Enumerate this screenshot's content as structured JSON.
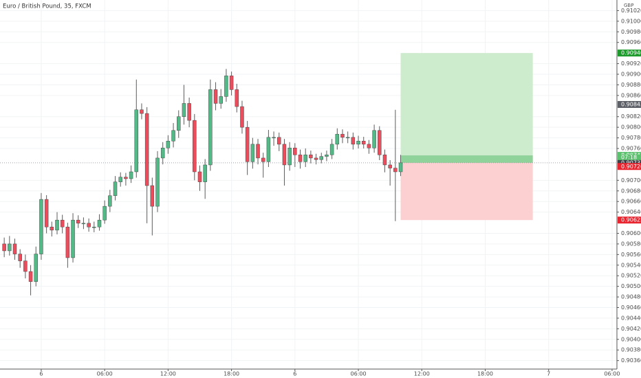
{
  "chart_data": {
    "type": "candlestick",
    "title": "Euro / British Pound, 35, FXCM",
    "currency": "GBP",
    "xlim": [
      -3.9,
      54.46
    ],
    "ylim": [
      0.90344,
      0.9104
    ],
    "xticks": [
      {
        "value": 0,
        "label": "6"
      },
      {
        "value": 6,
        "label": "06:00"
      },
      {
        "value": 12,
        "label": "12:00"
      },
      {
        "value": 18,
        "label": "18:00"
      },
      {
        "value": 24,
        "label": "6"
      },
      {
        "value": 30,
        "label": "06:00"
      },
      {
        "value": 36,
        "label": "12:00"
      },
      {
        "value": 42,
        "label": "18:00"
      },
      {
        "value": 48,
        "label": "7"
      },
      {
        "value": 54,
        "label": "06:00"
      }
    ],
    "yticks": [
      {
        "value": 0.9036,
        "label": "0.90360"
      },
      {
        "value": 0.9038,
        "label": "0.90380"
      },
      {
        "value": 0.904,
        "label": "0.90400"
      },
      {
        "value": 0.9042,
        "label": "0.90420"
      },
      {
        "value": 0.9044,
        "label": "0.90440"
      },
      {
        "value": 0.9046,
        "label": "0.90460"
      },
      {
        "value": 0.9048,
        "label": "0.90480"
      },
      {
        "value": 0.905,
        "label": "0.90500"
      },
      {
        "value": 0.9052,
        "label": "0.90520"
      },
      {
        "value": 0.9054,
        "label": "0.90540"
      },
      {
        "value": 0.9056,
        "label": "0.90560"
      },
      {
        "value": 0.9058,
        "label": "0.90580"
      },
      {
        "value": 0.906,
        "label": "0.90600"
      },
      {
        "value": 0.9064,
        "label": "0.90640"
      },
      {
        "value": 0.9066,
        "label": "0.90660"
      },
      {
        "value": 0.9068,
        "label": "0.90680"
      },
      {
        "value": 0.907,
        "label": "0.90700"
      },
      {
        "value": 0.9076,
        "label": "0.90760"
      },
      {
        "value": 0.9078,
        "label": "0.90780"
      },
      {
        "value": 0.908,
        "label": "0.90800"
      },
      {
        "value": 0.9082,
        "label": "0.90820"
      },
      {
        "value": 0.9086,
        "label": "0.90860"
      },
      {
        "value": 0.9088,
        "label": "0.90880"
      },
      {
        "value": 0.909,
        "label": "0.90900"
      },
      {
        "value": 0.9092,
        "label": "0.90920"
      },
      {
        "value": 0.9096,
        "label": "0.90960"
      },
      {
        "value": 0.9098,
        "label": "0.90980"
      },
      {
        "value": 0.91,
        "label": "0.91000"
      },
      {
        "value": 0.9102,
        "label": "0.91020"
      }
    ],
    "grid": true,
    "up_color": "#53b987",
    "down_color": "#eb4d5c",
    "x": [
      -3.5,
      -3,
      -2.5,
      -2,
      -1.5,
      -1,
      -0.5,
      0,
      0.5,
      1,
      1.5,
      2,
      2.5,
      3,
      3.5,
      4,
      4.5,
      5,
      5.5,
      6,
      6.5,
      7,
      7.5,
      8,
      8.5,
      9,
      9.5,
      10,
      10.5,
      11,
      11.5,
      12,
      12.5,
      13,
      13.5,
      14,
      14.5,
      15,
      15.5,
      16,
      16.5,
      17,
      17.5,
      18,
      18.5,
      19,
      19.5,
      20,
      20.5,
      21,
      21.5,
      22,
      22.5,
      23,
      23.5,
      24,
      24.5,
      25,
      25.5,
      26,
      26.5,
      27,
      27.5,
      28,
      28.5,
      29,
      29.5,
      30,
      30.5,
      31,
      31.5,
      32,
      32.5,
      33,
      33.5,
      34
    ],
    "open": [
      0.9058,
      0.90567,
      0.9058,
      0.90561,
      0.90548,
      0.90528,
      0.90509,
      0.90561,
      0.90664,
      0.90612,
      0.90606,
      0.90625,
      0.90612,
      0.90554,
      0.90625,
      0.90619,
      0.90619,
      0.90612,
      0.90612,
      0.90625,
      0.90651,
      0.90671,
      0.90697,
      0.90706,
      0.90703,
      0.90716,
      0.90833,
      0.90826,
      0.9069,
      0.90651,
      0.90742,
      0.90761,
      0.90774,
      0.90794,
      0.9082,
      0.90845,
      0.90813,
      0.90716,
      0.90697,
      0.90729,
      0.90871,
      0.90845,
      0.90858,
      0.90897,
      0.90871,
      0.90839,
      0.908,
      0.90735,
      0.90768,
      0.90742,
      0.90735,
      0.90781,
      0.90781,
      0.90768,
      0.90729,
      0.90761,
      0.90748,
      0.90735,
      0.90748,
      0.90742,
      0.90739,
      0.90745,
      0.90748,
      0.90768,
      0.90787,
      0.90781,
      0.90781,
      0.90768,
      0.90774,
      0.90768,
      0.90761,
      0.90794,
      0.90748,
      0.90729,
      0.90723,
      0.90716
    ],
    "high": [
      0.90592,
      0.90595,
      0.9059,
      0.9057,
      0.9056,
      0.9054,
      0.90575,
      0.90676,
      0.90672,
      0.90622,
      0.9064,
      0.90635,
      0.9062,
      0.90638,
      0.90634,
      0.9063,
      0.90628,
      0.90622,
      0.90636,
      0.90662,
      0.90682,
      0.90708,
      0.90715,
      0.90714,
      0.90728,
      0.9089,
      0.90845,
      0.90838,
      0.90705,
      0.90755,
      0.90772,
      0.90785,
      0.90808,
      0.90832,
      0.9088,
      0.90856,
      0.90825,
      0.90728,
      0.9074,
      0.9089,
      0.90885,
      0.90872,
      0.9091,
      0.90905,
      0.90882,
      0.9085,
      0.90812,
      0.9078,
      0.90778,
      0.90752,
      0.90795,
      0.90792,
      0.9079,
      0.90778,
      0.90772,
      0.9077,
      0.90758,
      0.9076,
      0.90756,
      0.9075,
      0.90752,
      0.90756,
      0.90778,
      0.90798,
      0.90796,
      0.90792,
      0.9079,
      0.90784,
      0.90782,
      0.90776,
      0.90805,
      0.90802,
      0.90758,
      0.90738,
      0.90833,
      0.90748
    ],
    "low": [
      0.90555,
      0.90558,
      0.9055,
      0.90535,
      0.90515,
      0.90483,
      0.905,
      0.9055,
      0.906,
      0.90594,
      0.90598,
      0.906,
      0.90535,
      0.90545,
      0.9061,
      0.90608,
      0.90603,
      0.90602,
      0.90605,
      0.90618,
      0.9064,
      0.90662,
      0.90688,
      0.9069,
      0.90695,
      0.90705,
      0.90815,
      0.90619,
      0.90596,
      0.9064,
      0.9073,
      0.9075,
      0.90762,
      0.9078,
      0.90805,
      0.908,
      0.907,
      0.9068,
      0.90665,
      0.90718,
      0.90832,
      0.90835,
      0.90848,
      0.9086,
      0.90828,
      0.90788,
      0.9071,
      0.90722,
      0.9073,
      0.90705,
      0.90725,
      0.90765,
      0.90755,
      0.9069,
      0.90718,
      0.90725,
      0.90722,
      0.90725,
      0.90732,
      0.9073,
      0.90732,
      0.90736,
      0.9074,
      0.90758,
      0.9077,
      0.9077,
      0.90758,
      0.9076,
      0.9076,
      0.9075,
      0.90752,
      0.90738,
      0.90715,
      0.9069,
      0.90623,
      0.90708
    ],
    "close": [
      0.90567,
      0.9058,
      0.90561,
      0.90548,
      0.90528,
      0.90509,
      0.90561,
      0.90664,
      0.90612,
      0.90606,
      0.90625,
      0.90612,
      0.90554,
      0.90625,
      0.90619,
      0.90619,
      0.90612,
      0.90612,
      0.90625,
      0.90651,
      0.90671,
      0.90697,
      0.90706,
      0.90703,
      0.90716,
      0.90833,
      0.90826,
      0.9069,
      0.90651,
      0.90742,
      0.90761,
      0.90774,
      0.90794,
      0.9082,
      0.90845,
      0.90813,
      0.90716,
      0.90697,
      0.90729,
      0.90871,
      0.90845,
      0.90858,
      0.90897,
      0.90871,
      0.90839,
      0.908,
      0.90735,
      0.90768,
      0.90742,
      0.90735,
      0.90781,
      0.90781,
      0.90768,
      0.90729,
      0.90761,
      0.90748,
      0.90735,
      0.90748,
      0.90742,
      0.90739,
      0.90745,
      0.90748,
      0.90768,
      0.90787,
      0.90781,
      0.90781,
      0.90768,
      0.90774,
      0.90768,
      0.90761,
      0.90794,
      0.90748,
      0.90729,
      0.90723,
      0.90716,
      0.90733
    ],
    "position": {
      "x": [
        34,
        46.5
      ],
      "target": 0.9094,
      "entry": 0.90747,
      "current": 0.90733,
      "stop": 0.90625,
      "profit_color": "#cdeccd",
      "loss_color": "#fcd0d0",
      "open_color": "#8fd39a"
    },
    "price_labels": [
      {
        "value": 0.9094,
        "label": "0.90940",
        "color": "#1e9a2c"
      },
      {
        "value": 0.90843,
        "label": "0.90843",
        "color": "#5d6066"
      },
      {
        "value": 0.90747,
        "label": "0.90747",
        "color": "#5cc16e"
      },
      {
        "value": 0.90733,
        "label": "0.90733",
        "color": "#3c3f45"
      },
      {
        "value": 0.90726,
        "label": "0.90726",
        "color": "#e8242f"
      },
      {
        "value": 0.90625,
        "label": "0.90625",
        "color": "#e8242f"
      }
    ],
    "countdown": "07:18"
  }
}
